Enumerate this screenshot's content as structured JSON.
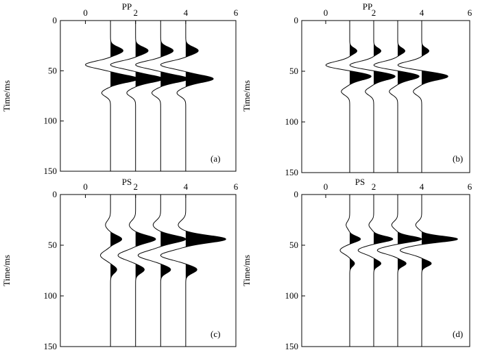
{
  "figure": {
    "panel_count": 4
  },
  "chart_data": [
    {
      "type": "seismogram",
      "panel_tag": "(a)",
      "title": "PP",
      "ylabel": "Time/ms",
      "xlim": [
        -1,
        6
      ],
      "xticks": [
        0,
        2,
        4,
        6
      ],
      "ylim": [
        0,
        150
      ],
      "yticks": [
        0,
        50,
        100,
        150
      ],
      "y_inverted": true,
      "x_axis_position": "top",
      "fill": "positive lobes filled black",
      "traces": [
        {
          "offset": 1,
          "wavelets": [
            {
              "time": 30,
              "amplitude": 0.5,
              "width": 5
            },
            {
              "time": 44,
              "amplitude": -1.0,
              "width": 5
            },
            {
              "time": 58,
              "amplitude": 1.1,
              "width": 5
            },
            {
              "time": 72,
              "amplitude": -0.35,
              "width": 5
            }
          ]
        },
        {
          "offset": 2,
          "wavelets": [
            {
              "time": 30,
              "amplitude": 0.5,
              "width": 5
            },
            {
              "time": 44,
              "amplitude": -1.0,
              "width": 5
            },
            {
              "time": 58,
              "amplitude": 1.1,
              "width": 5
            },
            {
              "time": 72,
              "amplitude": -0.35,
              "width": 5
            }
          ]
        },
        {
          "offset": 3,
          "wavelets": [
            {
              "time": 30,
              "amplitude": 0.5,
              "width": 5
            },
            {
              "time": 44,
              "amplitude": -1.0,
              "width": 5
            },
            {
              "time": 58,
              "amplitude": 1.1,
              "width": 5
            },
            {
              "time": 72,
              "amplitude": -0.35,
              "width": 5
            }
          ]
        },
        {
          "offset": 4,
          "wavelets": [
            {
              "time": 30,
              "amplitude": 0.5,
              "width": 5
            },
            {
              "time": 44,
              "amplitude": -1.0,
              "width": 5
            },
            {
              "time": 58,
              "amplitude": 1.1,
              "width": 5
            },
            {
              "time": 72,
              "amplitude": -0.35,
              "width": 5
            }
          ]
        }
      ]
    },
    {
      "type": "seismogram",
      "panel_tag": "(b)",
      "title": "PP",
      "ylabel": "Time/ms",
      "xlim": [
        -1,
        6
      ],
      "xticks": [
        0,
        2,
        4,
        6
      ],
      "ylim": [
        0,
        150
      ],
      "yticks": [
        0,
        50,
        100,
        150
      ],
      "y_inverted": true,
      "x_axis_position": "top",
      "fill": "positive lobes filled black",
      "traces": [
        {
          "offset": 1,
          "wavelets": [
            {
              "time": 30,
              "amplitude": 0.3,
              "width": 4
            },
            {
              "time": 44,
              "amplitude": -1.0,
              "width": 5
            },
            {
              "time": 55,
              "amplitude": 0.9,
              "width": 5
            },
            {
              "time": 70,
              "amplitude": -0.35,
              "width": 5
            }
          ]
        },
        {
          "offset": 2,
          "wavelets": [
            {
              "time": 30,
              "amplitude": 0.3,
              "width": 4
            },
            {
              "time": 44,
              "amplitude": -1.0,
              "width": 5
            },
            {
              "time": 55,
              "amplitude": 0.9,
              "width": 5
            },
            {
              "time": 70,
              "amplitude": -0.35,
              "width": 5
            }
          ]
        },
        {
          "offset": 3,
          "wavelets": [
            {
              "time": 30,
              "amplitude": 0.3,
              "width": 4
            },
            {
              "time": 44,
              "amplitude": -1.0,
              "width": 5
            },
            {
              "time": 55,
              "amplitude": 0.9,
              "width": 5
            },
            {
              "time": 70,
              "amplitude": -0.35,
              "width": 5
            }
          ]
        },
        {
          "offset": 4,
          "wavelets": [
            {
              "time": 30,
              "amplitude": 0.3,
              "width": 4
            },
            {
              "time": 44,
              "amplitude": -1.0,
              "width": 5
            },
            {
              "time": 55,
              "amplitude": 1.1,
              "width": 5
            },
            {
              "time": 70,
              "amplitude": -0.35,
              "width": 5
            }
          ]
        }
      ]
    },
    {
      "type": "seismogram",
      "panel_tag": "(c)",
      "title": "PS",
      "ylabel": "Time/ms",
      "xlim": [
        -1,
        6
      ],
      "xticks": [
        0,
        2,
        4,
        6
      ],
      "ylim": [
        0,
        150
      ],
      "yticks": [
        0,
        50,
        100,
        150
      ],
      "y_inverted": true,
      "x_axis_position": "top",
      "fill": "positive lobes filled black",
      "traces": [
        {
          "offset": 1,
          "wavelets": [
            {
              "time": 30,
              "amplitude": -0.2,
              "width": 6
            },
            {
              "time": 44,
              "amplitude": 0.45,
              "width": 5
            },
            {
              "time": 60,
              "amplitude": -0.4,
              "width": 6
            },
            {
              "time": 74,
              "amplitude": 0.25,
              "width": 5
            }
          ]
        },
        {
          "offset": 2,
          "wavelets": [
            {
              "time": 30,
              "amplitude": -0.25,
              "width": 6
            },
            {
              "time": 44,
              "amplitude": 0.8,
              "width": 5
            },
            {
              "time": 60,
              "amplitude": -0.7,
              "width": 6
            },
            {
              "time": 74,
              "amplitude": 0.35,
              "width": 5
            }
          ]
        },
        {
          "offset": 3,
          "wavelets": [
            {
              "time": 30,
              "amplitude": -0.3,
              "width": 6
            },
            {
              "time": 44,
              "amplitude": 1.0,
              "width": 5
            },
            {
              "time": 60,
              "amplitude": -0.9,
              "width": 6
            },
            {
              "time": 74,
              "amplitude": 0.4,
              "width": 5
            }
          ]
        },
        {
          "offset": 4,
          "wavelets": [
            {
              "time": 30,
              "amplitude": -0.3,
              "width": 6
            },
            {
              "time": 44,
              "amplitude": 1.6,
              "width": 5
            },
            {
              "time": 60,
              "amplitude": -1.0,
              "width": 6
            },
            {
              "time": 74,
              "amplitude": 0.45,
              "width": 5
            }
          ]
        }
      ]
    },
    {
      "type": "seismogram",
      "panel_tag": "(d)",
      "title": "PS",
      "ylabel": "Time/ms",
      "xlim": [
        -1,
        6
      ],
      "xticks": [
        0,
        2,
        4,
        6
      ],
      "ylim": [
        0,
        150
      ],
      "yticks": [
        0,
        50,
        100,
        150
      ],
      "y_inverted": true,
      "x_axis_position": "top",
      "fill": "positive lobes filled black",
      "traces": [
        {
          "offset": 1,
          "wavelets": [
            {
              "time": 30,
              "amplitude": -0.15,
              "width": 5
            },
            {
              "time": 44,
              "amplitude": 0.45,
              "width": 4
            },
            {
              "time": 55,
              "amplitude": -0.4,
              "width": 5
            },
            {
              "time": 68,
              "amplitude": 0.2,
              "width": 4
            }
          ]
        },
        {
          "offset": 2,
          "wavelets": [
            {
              "time": 30,
              "amplitude": -0.2,
              "width": 5
            },
            {
              "time": 44,
              "amplitude": 0.8,
              "width": 4
            },
            {
              "time": 55,
              "amplitude": -0.65,
              "width": 5
            },
            {
              "time": 68,
              "amplitude": 0.3,
              "width": 4
            }
          ]
        },
        {
          "offset": 3,
          "wavelets": [
            {
              "time": 30,
              "amplitude": -0.25,
              "width": 5
            },
            {
              "time": 44,
              "amplitude": 1.0,
              "width": 4
            },
            {
              "time": 55,
              "amplitude": -0.85,
              "width": 5
            },
            {
              "time": 68,
              "amplitude": 0.35,
              "width": 4
            }
          ]
        },
        {
          "offset": 4,
          "wavelets": [
            {
              "time": 30,
              "amplitude": -0.25,
              "width": 5
            },
            {
              "time": 44,
              "amplitude": 1.5,
              "width": 4
            },
            {
              "time": 55,
              "amplitude": -0.9,
              "width": 5
            },
            {
              "time": 68,
              "amplitude": 0.4,
              "width": 4
            }
          ]
        }
      ]
    }
  ]
}
